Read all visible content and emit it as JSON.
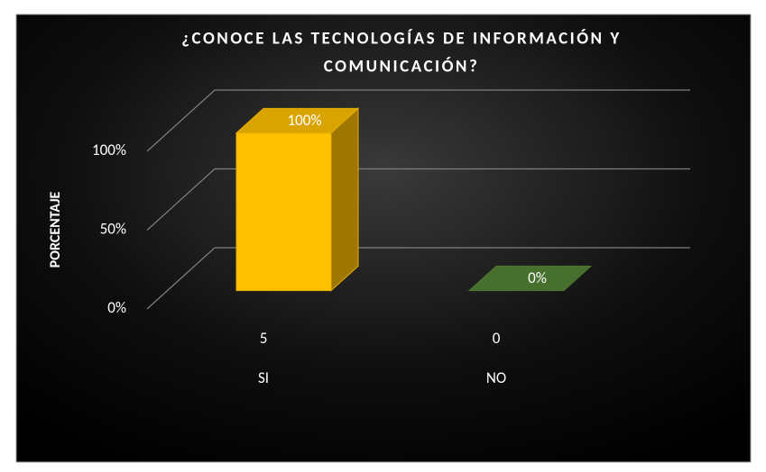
{
  "chart_data": {
    "type": "bar3d",
    "title_lines": [
      "¿CONOCE LAS TECNOLOGÍAS DE INFORMACIÓN Y",
      "COMUNICACIÓN?"
    ],
    "y_label": "PORCENTAJE",
    "categories": [
      "SI",
      "NO"
    ],
    "counts": [
      "5",
      "0"
    ],
    "values": [
      100,
      0
    ],
    "value_labels": [
      "100%",
      "0%"
    ],
    "colors": [
      "#ffc000",
      "#548235"
    ],
    "ylim": [
      0,
      100
    ],
    "yticks": [
      {
        "value": 0,
        "label": "0%"
      },
      {
        "value": 50,
        "label": "50%"
      },
      {
        "value": 100,
        "label": "100%"
      }
    ],
    "grid": true
  }
}
